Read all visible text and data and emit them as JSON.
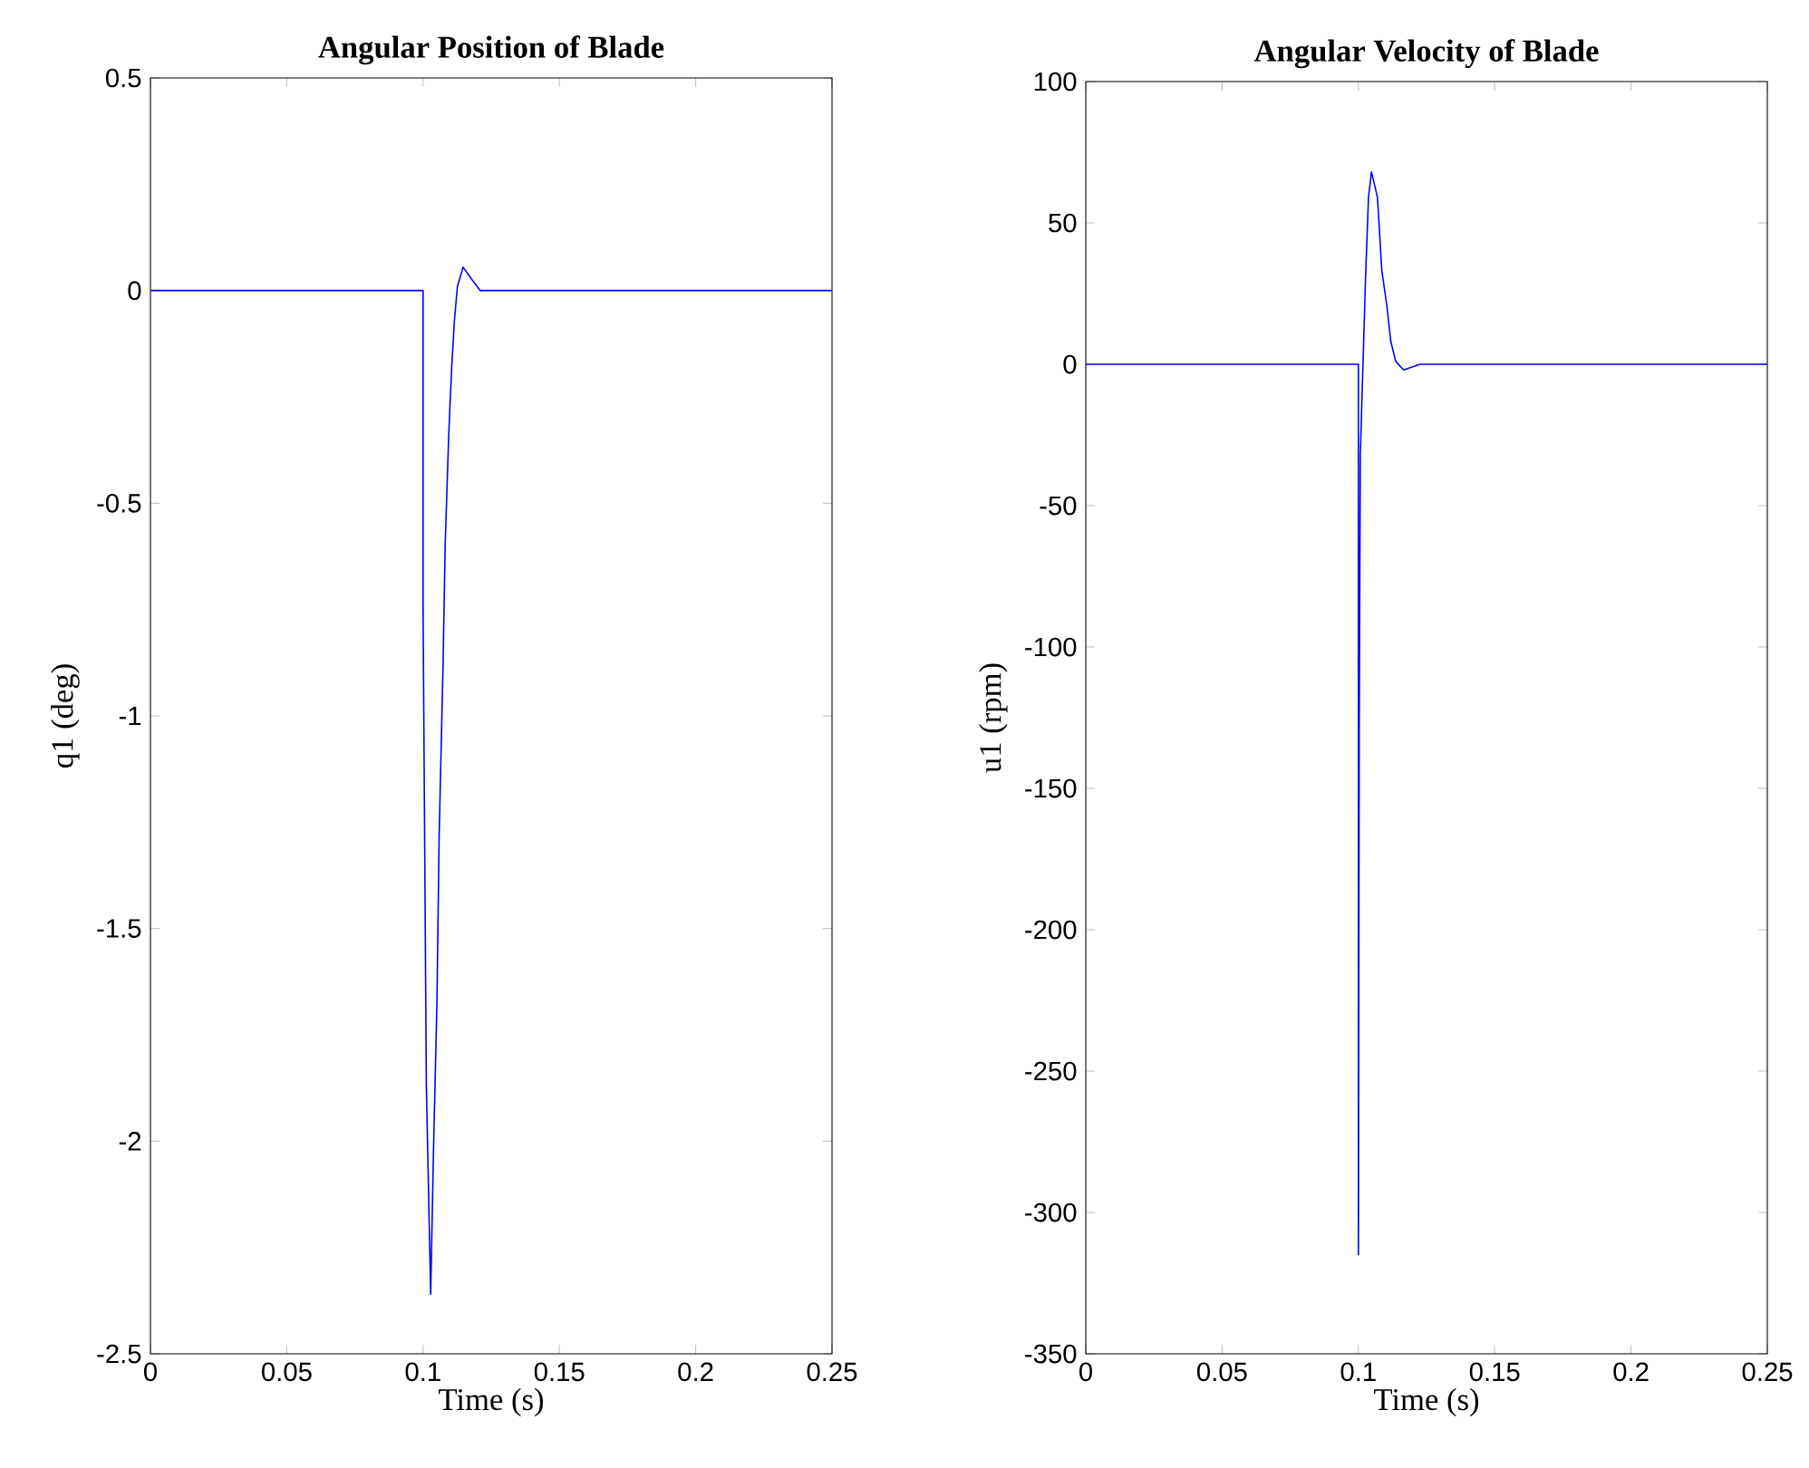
{
  "chart_data": [
    {
      "type": "line",
      "title": "Angular Position of Blade",
      "xlabel": "Time (s)",
      "ylabel": "q1 (deg)",
      "color": "#0000ff",
      "x": [
        0,
        0.1,
        0.1,
        0.1012,
        0.1028,
        0.1038,
        0.1051,
        0.1059,
        0.1073,
        0.1081,
        0.1094,
        0.1105,
        0.1115,
        0.1126,
        0.1147,
        0.1179,
        0.121,
        0.25
      ],
      "values": [
        0,
        0,
        -0.75,
        -1.87,
        -2.36,
        -2.03,
        -1.67,
        -1.28,
        -0.89,
        -0.6,
        -0.34,
        -0.18,
        -0.07,
        0.01,
        0.055,
        0.026,
        0,
        0
      ],
      "xlim": [
        0,
        0.25
      ],
      "ylim": [
        -2.5,
        0.5
      ],
      "xticks": [
        0,
        0.05,
        0.1,
        0.15,
        0.2,
        0.25
      ],
      "yticks": [
        -2.5,
        -2,
        -1.5,
        -1,
        -0.5,
        0,
        0.5
      ]
    },
    {
      "type": "line",
      "title": "Angular Velocity of Blade",
      "xlabel": "Time (s)",
      "ylabel": "u1 (rpm)",
      "color": "#0000ff",
      "x": [
        0,
        0.1,
        0.1,
        0.1003,
        0.1007,
        0.1026,
        0.1037,
        0.1048,
        0.107,
        0.1086,
        0.1104,
        0.1119,
        0.1137,
        0.1166,
        0.1226,
        0.25
      ],
      "values": [
        0,
        0,
        -315,
        -130,
        -32,
        30,
        59,
        68,
        59,
        33,
        21,
        8,
        1,
        -2,
        0,
        0
      ],
      "xlim": [
        0,
        0.25
      ],
      "ylim": [
        -350,
        100
      ],
      "xticks": [
        0,
        0.05,
        0.1,
        0.15,
        0.2,
        0.25
      ],
      "yticks": [
        -350,
        -300,
        -250,
        -200,
        -150,
        -100,
        -50,
        0,
        50,
        100
      ]
    }
  ]
}
